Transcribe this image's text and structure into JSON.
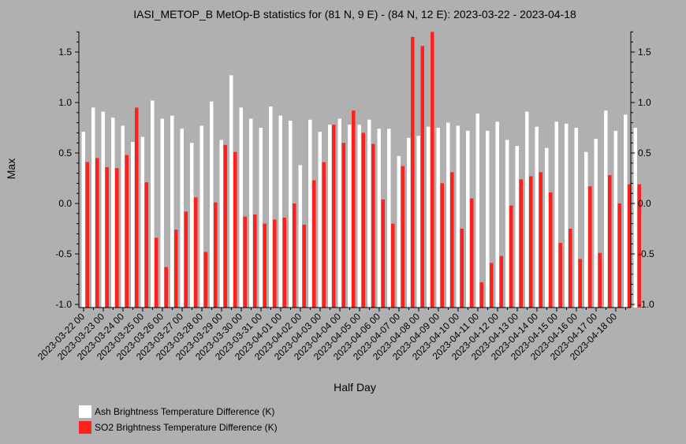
{
  "chart_data": {
    "type": "bar",
    "title": "IASI_METOP_B MetOp-B statistics for (81 N, 9 E) - (84 N, 12 E): 2023-03-22 - 2023-04-18",
    "xlabel": "Half Day",
    "ylabel": "Max",
    "ylim": [
      -1.0,
      1.7
    ],
    "yticks": [
      -1.0,
      -0.5,
      0.0,
      0.5,
      1.0,
      1.5
    ],
    "ytick_labels": [
      "-1.0",
      "-0.5",
      "0.0",
      "0.5",
      "1.0",
      "1.5"
    ],
    "grid": false,
    "legend_position": "bottom-left",
    "xtick_labels": [
      "2023-03-22 00",
      "2023-03-23 00",
      "2023-03-24 00",
      "2023-03-25 00",
      "2023-03-26 00",
      "2023-03-27 00",
      "2023-03-28 00",
      "2023-03-29 00",
      "2023-03-30 00",
      "2023-03-31 00",
      "2023-04-01 00",
      "2023-04-02 00",
      "2023-04-03 00",
      "2023-04-04 00",
      "2023-04-05 00",
      "2023-04-06 00",
      "2023-04-07 00",
      "2023-04-08 00",
      "2023-04-09 00",
      "2023-04-10 00",
      "2023-04-11 00",
      "2023-04-12 00",
      "2023-04-13 00",
      "2023-04-14 00",
      "2023-04-15 00",
      "2023-04-16 00",
      "2023-04-17 00",
      "2023-04-18 00"
    ],
    "series": [
      {
        "name": "Ash Brightness Temperature Difference (K)",
        "color": "#ffffff",
        "values": [
          0.71,
          0.95,
          0.91,
          0.85,
          0.77,
          0.61,
          0.66,
          1.02,
          0.84,
          0.87,
          0.74,
          0.6,
          0.77,
          1.01,
          0.63,
          1.27,
          0.95,
          0.84,
          0.75,
          0.96,
          0.87,
          0.82,
          0.38,
          0.83,
          0.71,
          0.78,
          0.84,
          0.78,
          0.78,
          0.83,
          0.74,
          0.74,
          0.47,
          0.65,
          0.67,
          0.76,
          0.75,
          0.8,
          0.77,
          0.72,
          0.89,
          0.72,
          0.81,
          0.63,
          0.57,
          0.91,
          0.76,
          0.55,
          0.81,
          0.79,
          0.75,
          0.51,
          0.64,
          0.92,
          0.72,
          0.88,
          0.75
        ]
      },
      {
        "name": "SO2 Brightness Temperature Difference (K)",
        "color": "#ff2020",
        "values": [
          0.41,
          0.45,
          0.36,
          0.35,
          0.48,
          0.95,
          0.21,
          -0.34,
          -0.63,
          -0.26,
          -0.08,
          0.06,
          -0.48,
          0.01,
          0.58,
          0.51,
          -0.13,
          -0.11,
          -0.2,
          -0.16,
          -0.14,
          0.0,
          -0.21,
          0.23,
          0.41,
          0.78,
          0.6,
          0.92,
          0.7,
          0.59,
          0.04,
          -0.2,
          0.37,
          1.65,
          1.56,
          1.7,
          0.2,
          0.31,
          -0.25,
          0.05,
          -0.78,
          -0.59,
          -0.52,
          -0.02,
          0.24,
          0.27,
          0.31,
          0.11,
          -0.39,
          -0.25,
          -0.55,
          0.17,
          -0.49,
          0.28,
          0.0,
          0.19,
          0.19
        ]
      }
    ]
  }
}
